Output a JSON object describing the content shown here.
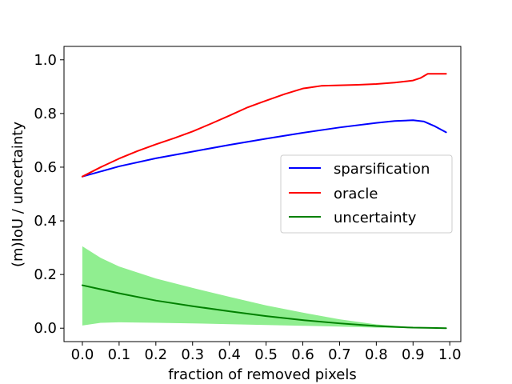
{
  "chart_data": {
    "type": "line",
    "title": "",
    "xlabel": "fraction of removed pixels",
    "ylabel": "(m)IoU / uncertainty",
    "xlim": [
      -0.05,
      1.03
    ],
    "ylim": [
      -0.05,
      1.05
    ],
    "xticks": [
      0.0,
      0.1,
      0.2,
      0.3,
      0.4,
      0.5,
      0.6,
      0.7,
      0.8,
      0.9,
      1.0
    ],
    "xtick_labels": [
      "0.0",
      "0.1",
      "0.2",
      "0.3",
      "0.4",
      "0.5",
      "0.6",
      "0.7",
      "0.8",
      "0.9",
      "1.0"
    ],
    "yticks": [
      0.0,
      0.2,
      0.4,
      0.6,
      0.8,
      1.0
    ],
    "ytick_labels": [
      "0.0",
      "0.2",
      "0.4",
      "0.6",
      "0.8",
      "1.0"
    ],
    "grid": false,
    "legend": {
      "placement": "center-right",
      "entries": [
        "sparsification",
        "oracle",
        "uncertainty"
      ]
    },
    "series": [
      {
        "name": "sparsification",
        "color": "#0000ff",
        "x": [
          0.0,
          0.1,
          0.2,
          0.3,
          0.4,
          0.5,
          0.6,
          0.7,
          0.8,
          0.85,
          0.9,
          0.93,
          0.96,
          0.99
        ],
        "y": [
          0.565,
          0.603,
          0.633,
          0.658,
          0.683,
          0.706,
          0.728,
          0.748,
          0.765,
          0.772,
          0.775,
          0.77,
          0.752,
          0.73
        ]
      },
      {
        "name": "oracle",
        "color": "#ff0000",
        "x": [
          0.0,
          0.05,
          0.1,
          0.15,
          0.2,
          0.25,
          0.3,
          0.35,
          0.4,
          0.45,
          0.5,
          0.55,
          0.6,
          0.65,
          0.7,
          0.75,
          0.8,
          0.85,
          0.9,
          0.92,
          0.94,
          0.96,
          0.99
        ],
        "y": [
          0.565,
          0.6,
          0.632,
          0.66,
          0.685,
          0.708,
          0.733,
          0.762,
          0.792,
          0.823,
          0.848,
          0.872,
          0.893,
          0.903,
          0.905,
          0.907,
          0.91,
          0.915,
          0.923,
          0.932,
          0.948,
          0.948,
          0.948
        ]
      },
      {
        "name": "uncertainty",
        "color": "#008000",
        "x": [
          0.0,
          0.1,
          0.2,
          0.3,
          0.4,
          0.5,
          0.6,
          0.7,
          0.8,
          0.9,
          0.95,
          0.99
        ],
        "y": [
          0.16,
          0.13,
          0.103,
          0.082,
          0.063,
          0.045,
          0.03,
          0.018,
          0.008,
          0.002,
          0.001,
          0.0
        ]
      }
    ],
    "band": {
      "name": "uncertainty range",
      "color": "#90ee90",
      "x": [
        0.0,
        0.05,
        0.1,
        0.2,
        0.3,
        0.4,
        0.5,
        0.6,
        0.7,
        0.8,
        0.9,
        0.95,
        0.99
      ],
      "upper": [
        0.305,
        0.262,
        0.23,
        0.185,
        0.15,
        0.117,
        0.085,
        0.058,
        0.033,
        0.014,
        0.003,
        0.001,
        0.0
      ],
      "lower": [
        0.01,
        0.02,
        0.022,
        0.02,
        0.018,
        0.015,
        0.012,
        0.009,
        0.006,
        0.002,
        0.0,
        0.0,
        0.0
      ]
    }
  }
}
